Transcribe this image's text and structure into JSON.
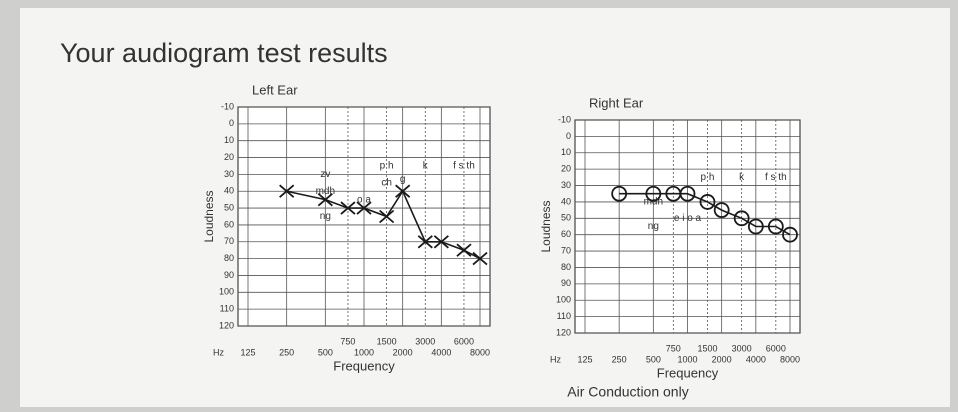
{
  "title": "Your audiogram test results",
  "note": "Air Conduction only",
  "chart_data": [
    {
      "type": "line",
      "title": "Left Ear",
      "ylabel": "Loudness",
      "xlabel": "Frequency",
      "x_unit": "Hz",
      "x": [
        250,
        500,
        750,
        1000,
        1500,
        2000,
        3000,
        4000,
        6000,
        8000
      ],
      "values": [
        40,
        45,
        50,
        50,
        55,
        40,
        70,
        70,
        75,
        80
      ],
      "marker": "x",
      "color": "#1a1a1a",
      "xscale": "log",
      "xlim": [
        125,
        8000
      ],
      "xticks": [
        125,
        250,
        500,
        750,
        1000,
        1500,
        2000,
        3000,
        4000,
        6000,
        8000
      ],
      "ylim": [
        -10,
        120
      ],
      "invert_y": true,
      "yticks": [
        -10,
        0,
        10,
        20,
        30,
        40,
        50,
        60,
        70,
        80,
        90,
        100,
        110,
        120
      ],
      "grid": true,
      "annotations": [
        {
          "text": "zv",
          "x": 500,
          "y": 30
        },
        {
          "text": "mdh",
          "x": 500,
          "y": 40
        },
        {
          "text": "ng",
          "x": 500,
          "y": 55
        },
        {
          "text": "o a",
          "x": 1000,
          "y": 45
        },
        {
          "text": "p h",
          "x": 1500,
          "y": 25
        },
        {
          "text": "ch",
          "x": 1500,
          "y": 35
        },
        {
          "text": "g",
          "x": 2000,
          "y": 33
        },
        {
          "text": "k",
          "x": 3000,
          "y": 25
        },
        {
          "text": "f s th",
          "x": 6000,
          "y": 25
        }
      ]
    },
    {
      "type": "line",
      "title": "Right Ear",
      "ylabel": "Loudness",
      "xlabel": "Frequency",
      "x_unit": "Hz",
      "x": [
        250,
        500,
        750,
        1000,
        1500,
        2000,
        3000,
        4000,
        6000,
        8000
      ],
      "values": [
        35,
        35,
        35,
        35,
        40,
        45,
        50,
        55,
        55,
        60
      ],
      "marker": "o",
      "color": "#1a1a1a",
      "xscale": "log",
      "xlim": [
        125,
        8000
      ],
      "xticks": [
        125,
        250,
        500,
        750,
        1000,
        1500,
        2000,
        3000,
        4000,
        6000,
        8000
      ],
      "ylim": [
        -10,
        120
      ],
      "invert_y": true,
      "yticks": [
        -10,
        0,
        10,
        20,
        30,
        40,
        50,
        60,
        70,
        80,
        90,
        100,
        110,
        120
      ],
      "grid": true,
      "annotations": [
        {
          "text": "mdh",
          "x": 500,
          "y": 40
        },
        {
          "text": "ng",
          "x": 500,
          "y": 55
        },
        {
          "text": "e i o a",
          "x": 1000,
          "y": 50
        },
        {
          "text": "p h",
          "x": 1500,
          "y": 25
        },
        {
          "text": "k",
          "x": 3000,
          "y": 25
        },
        {
          "text": "f s th",
          "x": 6000,
          "y": 25
        }
      ]
    }
  ]
}
